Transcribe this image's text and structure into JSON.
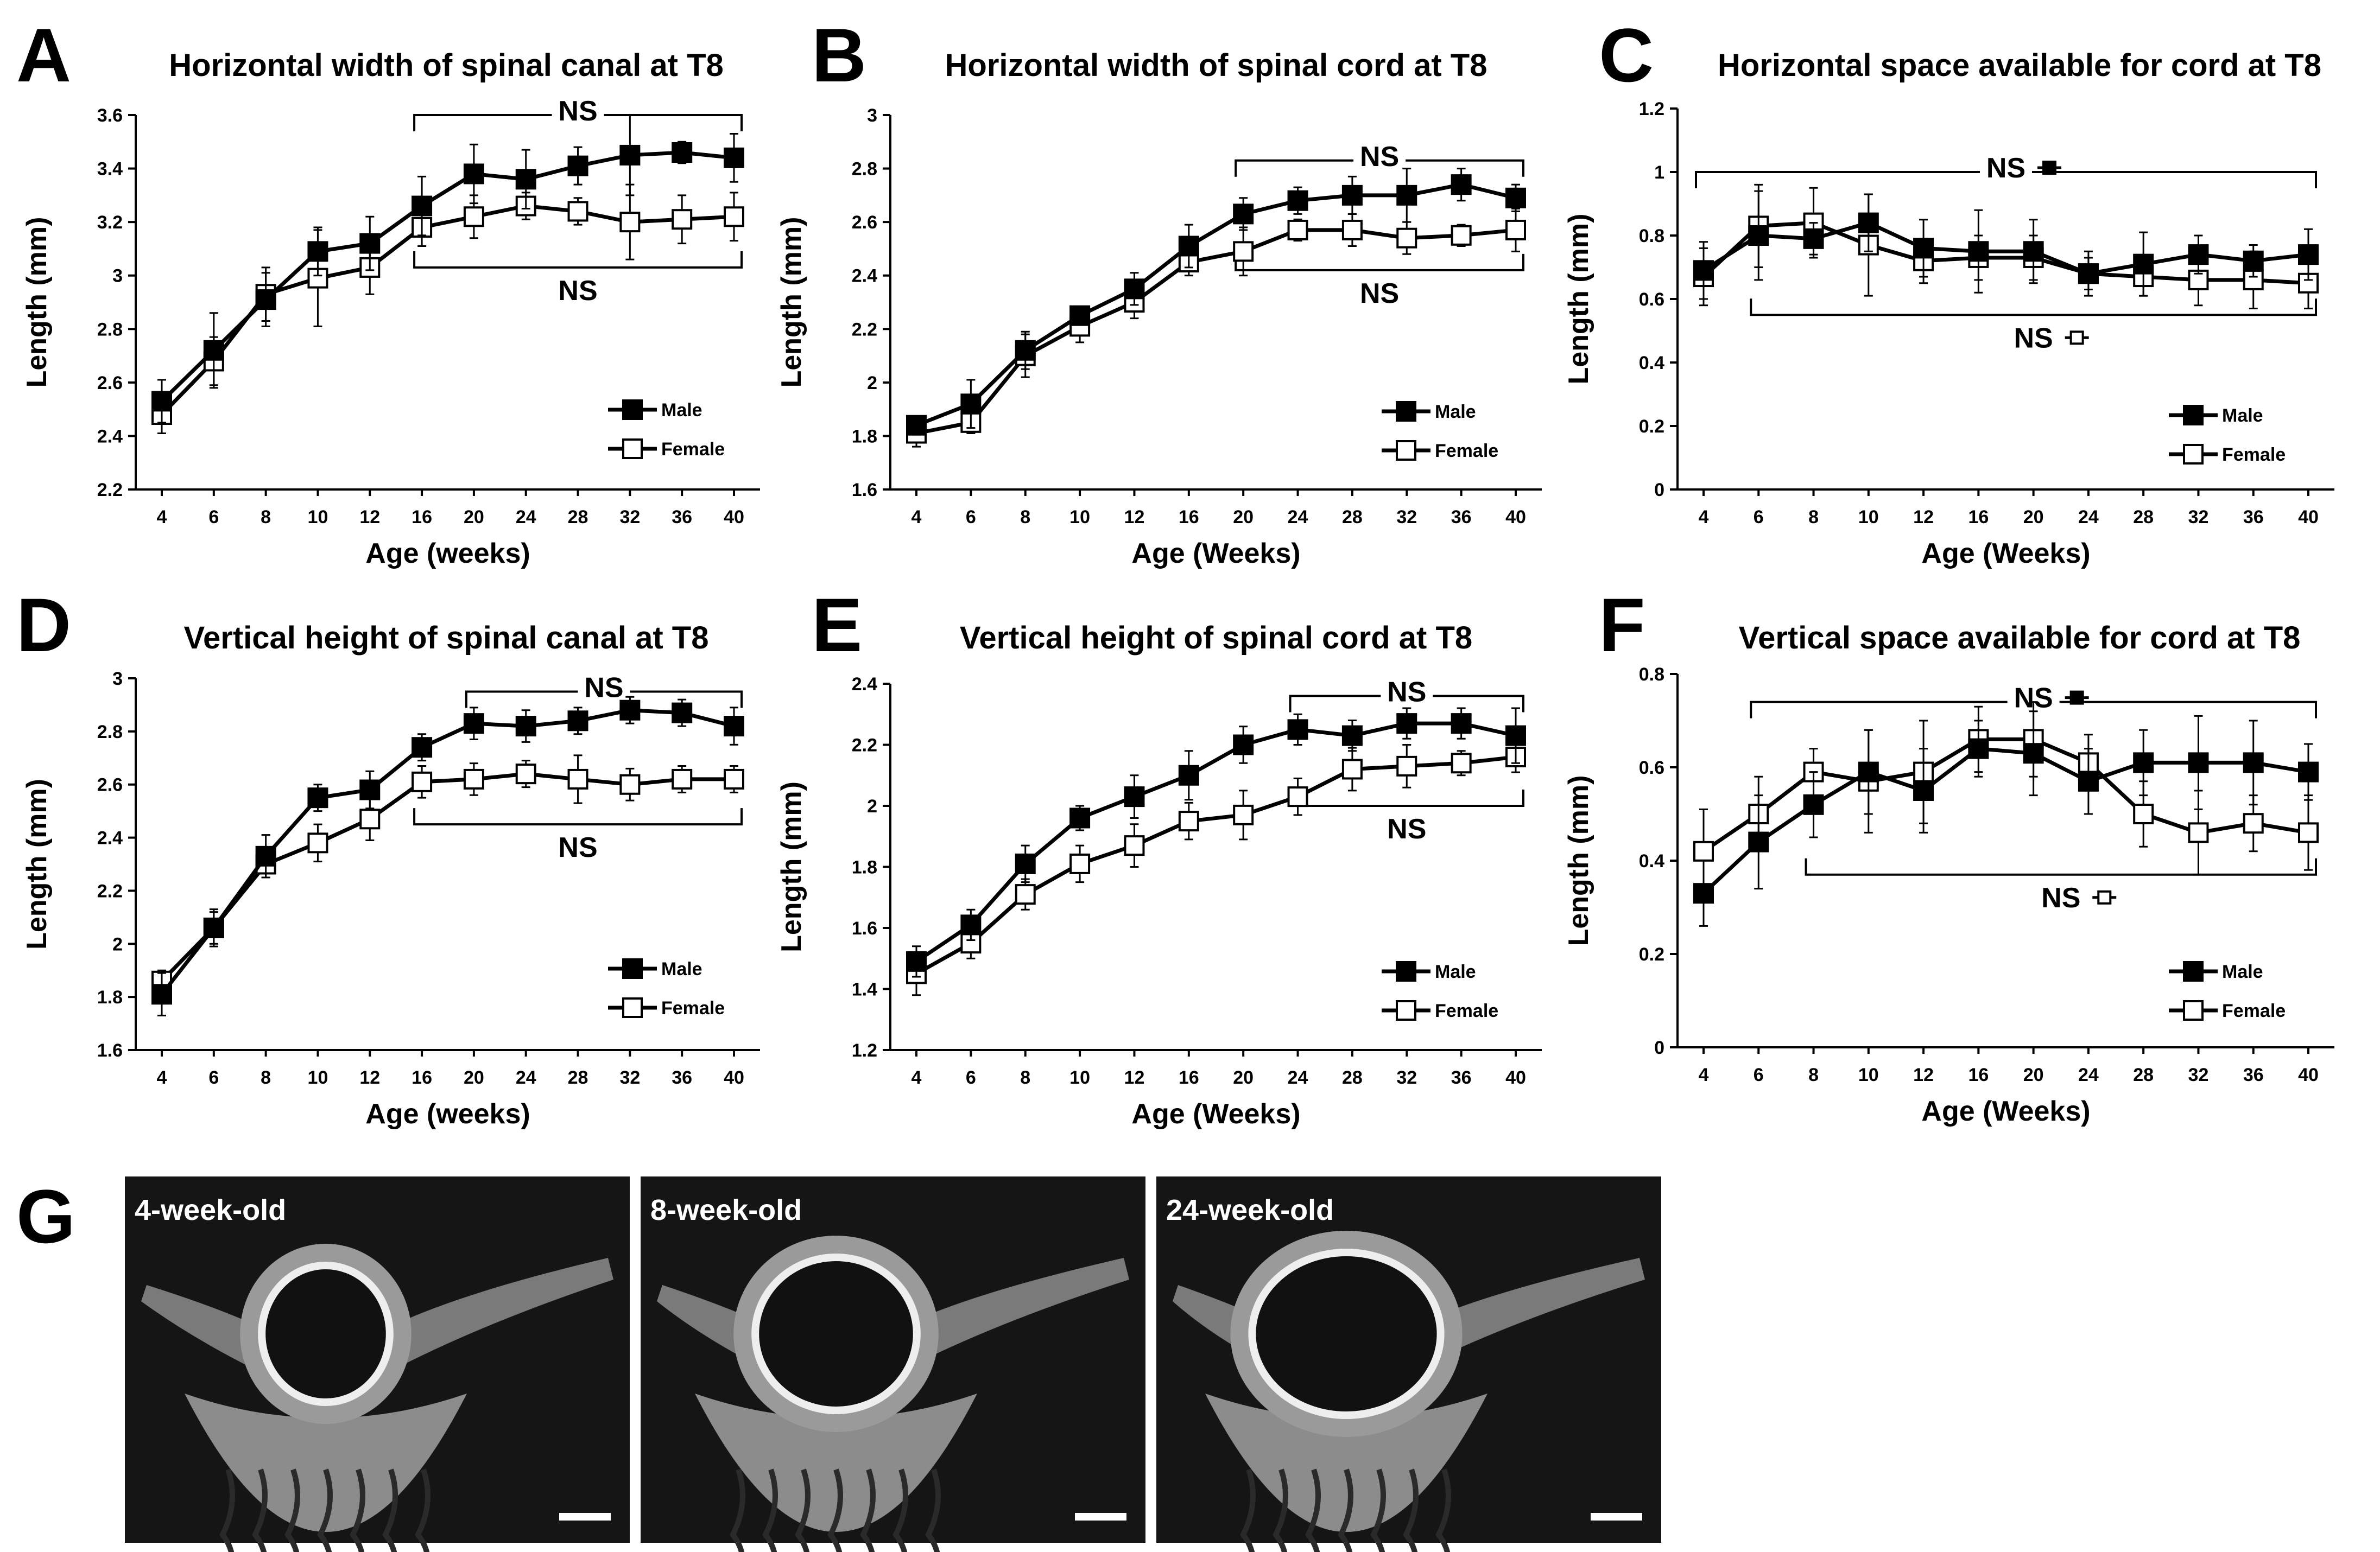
{
  "chart_data": [
    {
      "panel": "A",
      "type": "line",
      "title": "Horizontal width of spinal canal at T8",
      "xlabel": "Age (weeks)",
      "ylabel": "Length (mm)",
      "categories": [
        "4",
        "6",
        "8",
        "10",
        "12",
        "16",
        "20",
        "24",
        "28",
        "32",
        "36",
        "40"
      ],
      "yticks": [
        "2.2",
        "2.4",
        "2.6",
        "2.8",
        "3",
        "3.2",
        "3.4",
        "3.6"
      ],
      "ylim": [
        2.2,
        3.6
      ],
      "series": [
        {
          "name": "Male",
          "marker": "filled-square",
          "values": [
            2.53,
            2.72,
            2.91,
            3.09,
            3.12,
            3.26,
            3.38,
            3.36,
            3.41,
            3.45,
            3.46,
            3.44
          ],
          "errors": [
            0.08,
            0.14,
            0.1,
            0.09,
            0.1,
            0.11,
            0.11,
            0.11,
            0.07,
            0.15,
            0.04,
            0.09
          ]
        },
        {
          "name": "Female",
          "marker": "open-square",
          "values": [
            2.48,
            2.68,
            2.93,
            2.99,
            3.03,
            3.18,
            3.22,
            3.26,
            3.24,
            3.2,
            3.21,
            3.22
          ],
          "errors": [
            0.07,
            0.09,
            0.1,
            0.18,
            0.1,
            0.07,
            0.08,
            0.05,
            0.05,
            0.14,
            0.09,
            0.09
          ]
        }
      ],
      "annotations": [
        {
          "text": "NS",
          "from": "16",
          "to": "40",
          "side": "top",
          "y": 3.6
        },
        {
          "text": "NS",
          "from": "16",
          "to": "40",
          "side": "bottom",
          "y": 3.03
        }
      ],
      "legend": "bottom-right"
    },
    {
      "panel": "B",
      "type": "line",
      "title": "Horizontal width of spinal cord at T8",
      "xlabel": "Age (Weeks)",
      "ylabel": "Length (mm)",
      "categories": [
        "4",
        "6",
        "8",
        "10",
        "12",
        "16",
        "20",
        "24",
        "28",
        "32",
        "36",
        "40"
      ],
      "yticks": [
        "1.6",
        "1.8",
        "2",
        "2.2",
        "2.4",
        "2.6",
        "2.8",
        "3"
      ],
      "ylim": [
        1.6,
        3.0
      ],
      "series": [
        {
          "name": "Male",
          "marker": "filled-square",
          "values": [
            1.84,
            1.92,
            2.12,
            2.25,
            2.35,
            2.51,
            2.63,
            2.68,
            2.7,
            2.7,
            2.74,
            2.69
          ],
          "errors": [
            0.03,
            0.09,
            0.07,
            0.03,
            0.06,
            0.08,
            0.06,
            0.05,
            0.07,
            0.1,
            0.06,
            0.05
          ]
        },
        {
          "name": "Female",
          "marker": "open-square",
          "values": [
            1.81,
            1.85,
            2.1,
            2.21,
            2.3,
            2.45,
            2.49,
            2.57,
            2.57,
            2.54,
            2.55,
            2.57
          ],
          "errors": [
            0.05,
            0.04,
            0.08,
            0.06,
            0.06,
            0.05,
            0.09,
            0.04,
            0.06,
            0.06,
            0.04,
            0.08
          ]
        }
      ],
      "annotations": [
        {
          "text": "NS",
          "from": "20",
          "to": "40",
          "side": "top",
          "y": 2.83
        },
        {
          "text": "NS",
          "from": "20",
          "to": "40",
          "side": "bottom",
          "y": 2.42
        }
      ],
      "legend": "bottom-right"
    },
    {
      "panel": "C",
      "type": "line",
      "title": "Horizontal space available for cord at T8",
      "xlabel": "Age (Weeks)",
      "ylabel": "Length (mm)",
      "categories": [
        "4",
        "6",
        "8",
        "10",
        "12",
        "16",
        "20",
        "24",
        "28",
        "32",
        "36",
        "40"
      ],
      "yticks": [
        "0",
        "0.2",
        "0.4",
        "0.6",
        "0.8",
        "1",
        "1.2"
      ],
      "ylim": [
        0,
        1.2
      ],
      "series": [
        {
          "name": "Male",
          "marker": "filled-square",
          "values": [
            0.69,
            0.8,
            0.79,
            0.84,
            0.76,
            0.75,
            0.75,
            0.68,
            0.71,
            0.74,
            0.72,
            0.74
          ],
          "errors": [
            0.09,
            0.14,
            0.05,
            0.09,
            0.09,
            0.13,
            0.1,
            0.07,
            0.1,
            0.06,
            0.05,
            0.08
          ]
        },
        {
          "name": "Female",
          "marker": "open-square",
          "values": [
            0.67,
            0.83,
            0.84,
            0.77,
            0.72,
            0.73,
            0.73,
            0.68,
            0.67,
            0.66,
            0.66,
            0.65
          ],
          "errors": [
            0.09,
            0.13,
            0.11,
            0.16,
            0.07,
            0.07,
            0.07,
            0.05,
            0.06,
            0.08,
            0.09,
            0.08
          ]
        }
      ],
      "annotations": [
        {
          "text": "NS",
          "from": "4",
          "to": "40",
          "side": "top",
          "y": 1.0,
          "marker": "filled-square"
        },
        {
          "text": "NS",
          "from": "6",
          "to": "40",
          "side": "bottom",
          "y": 0.55,
          "marker": "open-square"
        }
      ],
      "legend": "bottom-right"
    },
    {
      "panel": "D",
      "type": "line",
      "title": "Vertical height of spinal canal at T8",
      "xlabel": "Age (weeks)",
      "ylabel": "Length (mm)",
      "categories": [
        "4",
        "6",
        "8",
        "10",
        "12",
        "16",
        "20",
        "24",
        "28",
        "32",
        "36",
        "40"
      ],
      "yticks": [
        "1.6",
        "1.8",
        "2",
        "2.2",
        "2.4",
        "2.6",
        "2.8",
        "3"
      ],
      "ylim": [
        1.6,
        3.0
      ],
      "series": [
        {
          "name": "Male",
          "marker": "filled-square",
          "values": [
            1.81,
            2.06,
            2.33,
            2.55,
            2.58,
            2.74,
            2.83,
            2.82,
            2.84,
            2.88,
            2.87,
            2.82
          ],
          "errors": [
            0.08,
            0.06,
            0.08,
            0.05,
            0.07,
            0.05,
            0.06,
            0.06,
            0.05,
            0.05,
            0.05,
            0.07
          ]
        },
        {
          "name": "Female",
          "marker": "open-square",
          "values": [
            1.86,
            2.06,
            2.3,
            2.38,
            2.47,
            2.61,
            2.62,
            2.64,
            2.62,
            2.6,
            2.62,
            2.62
          ],
          "errors": [
            0.04,
            0.07,
            0.05,
            0.07,
            0.08,
            0.06,
            0.06,
            0.05,
            0.09,
            0.06,
            0.05,
            0.05
          ]
        }
      ],
      "annotations": [
        {
          "text": "NS",
          "from": "20",
          "to": "40",
          "side": "top",
          "y": 2.95
        },
        {
          "text": "NS",
          "from": "16",
          "to": "40",
          "side": "bottom",
          "y": 2.45
        }
      ],
      "legend": "bottom-right"
    },
    {
      "panel": "E",
      "type": "line",
      "title": "Vertical height of spinal cord at T8",
      "xlabel": "Age (Weeks)",
      "ylabel": "Length (mm)",
      "categories": [
        "4",
        "6",
        "8",
        "10",
        "12",
        "16",
        "20",
        "24",
        "28",
        "32",
        "36",
        "40"
      ],
      "yticks": [
        "1.2",
        "1.4",
        "1.6",
        "1.8",
        "2",
        "2.2",
        "2.4"
      ],
      "ylim": [
        1.2,
        2.4
      ],
      "series": [
        {
          "name": "Male",
          "marker": "filled-square",
          "values": [
            1.49,
            1.61,
            1.81,
            1.96,
            2.03,
            2.1,
            2.2,
            2.25,
            2.23,
            2.27,
            2.27,
            2.23
          ],
          "errors": [
            0.05,
            0.05,
            0.06,
            0.04,
            0.07,
            0.08,
            0.06,
            0.05,
            0.05,
            0.05,
            0.05,
            0.09
          ]
        },
        {
          "name": "Female",
          "marker": "open-square",
          "values": [
            1.45,
            1.55,
            1.71,
            1.81,
            1.87,
            1.95,
            1.97,
            2.03,
            2.12,
            2.13,
            2.14,
            2.16
          ],
          "errors": [
            0.07,
            0.05,
            0.05,
            0.06,
            0.07,
            0.06,
            0.08,
            0.06,
            0.07,
            0.07,
            0.04,
            0.05
          ]
        }
      ],
      "annotations": [
        {
          "text": "NS",
          "from": "24",
          "to": "40",
          "side": "top",
          "y": 2.36
        },
        {
          "text": "NS",
          "from": "24",
          "to": "40",
          "side": "bottom",
          "y": 2.0
        }
      ],
      "legend": "bottom-right"
    },
    {
      "panel": "F",
      "type": "line",
      "title": "Vertical space available for cord at T8",
      "xlabel": "Age (Weeks)",
      "ylabel": "Length (mm)",
      "categories": [
        "4",
        "6",
        "8",
        "10",
        "12",
        "16",
        "20",
        "24",
        "28",
        "32",
        "36",
        "40"
      ],
      "yticks": [
        "0",
        "0.2",
        "0.4",
        "0.6",
        "0.8"
      ],
      "ylim": [
        0,
        0.8
      ],
      "series": [
        {
          "name": "Male",
          "marker": "filled-square",
          "values": [
            0.33,
            0.44,
            0.52,
            0.59,
            0.55,
            0.64,
            0.63,
            0.57,
            0.61,
            0.61,
            0.61,
            0.59
          ],
          "errors": [
            0.07,
            0.1,
            0.07,
            0.09,
            0.09,
            0.06,
            0.09,
            0.07,
            0.07,
            0.1,
            0.09,
            0.06
          ]
        },
        {
          "name": "Female",
          "marker": "open-square",
          "values": [
            0.42,
            0.5,
            0.59,
            0.57,
            0.59,
            0.66,
            0.66,
            0.61,
            0.5,
            0.46,
            0.48,
            0.46
          ],
          "errors": [
            0.09,
            0.08,
            0.05,
            0.11,
            0.11,
            0.07,
            0.08,
            0.06,
            0.07,
            0.09,
            0.06,
            0.08
          ]
        }
      ],
      "annotations": [
        {
          "text": "NS",
          "from": "6",
          "to": "40",
          "side": "top",
          "y": 0.74,
          "marker": "filled-square"
        },
        {
          "text": "NS",
          "from": "8",
          "to": "40",
          "side": "bottom",
          "y": 0.37,
          "marker": "open-square"
        }
      ],
      "legend": "bottom-right"
    }
  ],
  "micrographs": {
    "panel": "G",
    "labels": [
      "4-week-old",
      "8-week-old",
      "24-week-old"
    ]
  },
  "colors": {
    "line": "#000000",
    "open_fill": "#ffffff",
    "filled_fill": "#000000",
    "image_bg": "#151515",
    "bone": "#8c8c8c",
    "bone_bright": "#eeeeee"
  }
}
